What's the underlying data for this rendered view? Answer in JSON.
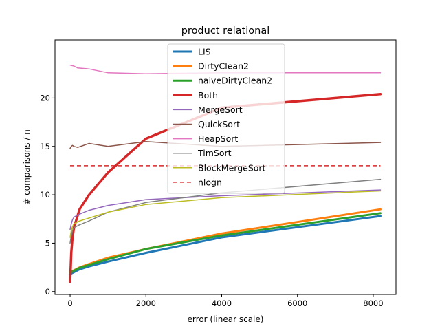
{
  "chart_data": {
    "type": "line",
    "title": "product relational",
    "xlabel": "error (linear scale)",
    "ylabel": "# comparisons / n",
    "xlim": [
      -400,
      8600
    ],
    "ylim": [
      -0.3,
      26
    ],
    "x_ticks": [
      0,
      2000,
      4000,
      6000,
      8000
    ],
    "y_ticks": [
      0,
      5,
      10,
      15,
      20
    ],
    "grid": false,
    "legend_position": "upper-center",
    "series": [
      {
        "name": "LIS",
        "color": "#1f77b4",
        "width": 3,
        "x": [
          0,
          50,
          100,
          250,
          500,
          1000,
          2000,
          4000,
          8192
        ],
        "y": [
          1.8,
          1.9,
          2.0,
          2.3,
          2.6,
          3.1,
          4.0,
          5.6,
          7.8
        ]
      },
      {
        "name": "DirtyClean2",
        "color": "#ff7f0e",
        "width": 3,
        "x": [
          0,
          50,
          100,
          250,
          500,
          1000,
          2000,
          4000,
          8192
        ],
        "y": [
          2.0,
          2.1,
          2.2,
          2.5,
          2.85,
          3.5,
          4.4,
          6.0,
          8.5
        ]
      },
      {
        "name": "naiveDirtyClean2",
        "color": "#2ca02c",
        "width": 3,
        "x": [
          0,
          50,
          100,
          250,
          500,
          1000,
          2000,
          4000,
          8192
        ],
        "y": [
          1.9,
          2.05,
          2.15,
          2.45,
          2.75,
          3.35,
          4.4,
          5.8,
          8.1
        ]
      },
      {
        "name": "Both",
        "color": "#d62728",
        "width": 3.5,
        "x": [
          0,
          15,
          30,
          60,
          100,
          250,
          500,
          1000,
          2000,
          4000,
          8192
        ],
        "y": [
          1.0,
          2.5,
          4.0,
          5.5,
          6.6,
          8.5,
          10.0,
          12.3,
          15.8,
          19.0,
          20.4
        ]
      },
      {
        "name": "MergeSort",
        "color": "#9467bd",
        "width": 1.5,
        "x": [
          0,
          30,
          60,
          100,
          250,
          500,
          1000,
          2000,
          4000,
          8192
        ],
        "y": [
          6.4,
          7.0,
          7.4,
          7.7,
          8.0,
          8.4,
          8.9,
          9.5,
          9.9,
          10.5
        ]
      },
      {
        "name": "QuickSort",
        "color": "#8c564b",
        "width": 1.5,
        "x": [
          0,
          30,
          60,
          100,
          200,
          500,
          1000,
          2000,
          4000,
          8192
        ],
        "y": [
          14.8,
          15.0,
          15.1,
          15.0,
          14.9,
          15.3,
          15.0,
          15.5,
          15.0,
          15.4
        ]
      },
      {
        "name": "HeapSort",
        "color": "#e377c2",
        "width": 1.5,
        "x": [
          0,
          100,
          200,
          500,
          1000,
          2000,
          4000,
          8192
        ],
        "y": [
          23.4,
          23.3,
          23.1,
          23.0,
          22.6,
          22.5,
          22.6,
          22.6
        ]
      },
      {
        "name": "TimSort",
        "color": "#7f7f7f",
        "width": 1.5,
        "x": [
          0,
          30,
          60,
          100,
          250,
          500,
          1000,
          2000,
          4000,
          8192
        ],
        "y": [
          5.0,
          5.8,
          6.3,
          6.6,
          6.9,
          7.3,
          8.2,
          9.2,
          10.2,
          11.6
        ]
      },
      {
        "name": "BlockMergeSort",
        "color": "#bcbd22",
        "width": 1.5,
        "x": [
          0,
          30,
          60,
          100,
          250,
          500,
          1000,
          2000,
          4000,
          8192
        ],
        "y": [
          5.6,
          6.3,
          6.7,
          7.0,
          7.3,
          7.6,
          8.2,
          9.0,
          9.7,
          10.4
        ]
      },
      {
        "name": "nlogn",
        "color": "#d62728",
        "width": 1.5,
        "dash": true,
        "x": [
          0,
          8192
        ],
        "y": [
          13.0,
          13.0
        ]
      }
    ]
  }
}
